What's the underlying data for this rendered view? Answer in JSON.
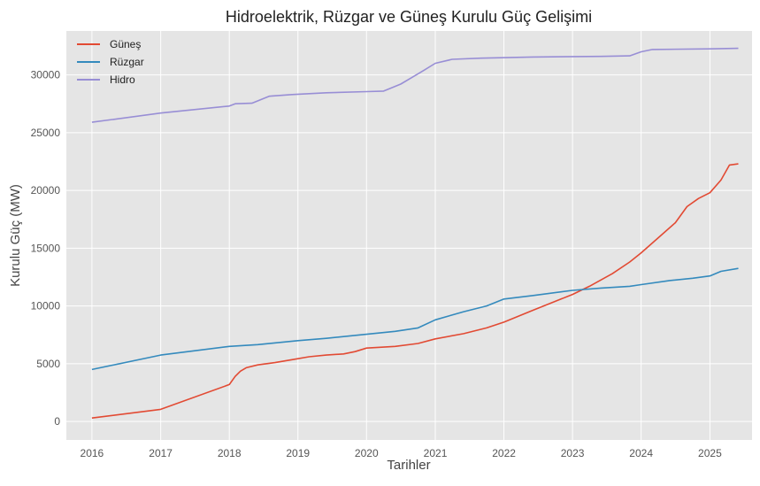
{
  "chart_data": {
    "type": "line",
    "title": "Hidroelektrik, Rüzgar ve Güneş Kurulu Güç Gelişimi",
    "xlabel": "Tarihler",
    "ylabel": "Kurulu Güç (MW)",
    "xlim": [
      "2015-08-18",
      "2025-08-13"
    ],
    "ylim": [
      -1600,
      33800
    ],
    "x_ticks": [
      "2016",
      "2017",
      "2018",
      "2019",
      "2020",
      "2021",
      "2022",
      "2023",
      "2024",
      "2025"
    ],
    "x_tick_dates": [
      "2016-01-01",
      "2017-01-01",
      "2018-01-01",
      "2019-01-01",
      "2020-01-01",
      "2021-01-01",
      "2022-01-01",
      "2023-01-01",
      "2024-01-01",
      "2025-01-01"
    ],
    "y_ticks": [
      0,
      5000,
      10000,
      15000,
      20000,
      25000,
      30000
    ],
    "grid": true,
    "legend_position": "top-left",
    "colors": {
      "background": "#e5e5e5",
      "grid": "#ffffff",
      "axis_text": "#555555",
      "label_text": "#333333"
    },
    "series": [
      {
        "name": "Güneş",
        "color": "#e24a33",
        "points": [
          [
            "2016-01-01",
            300
          ],
          [
            "2017-01-01",
            1050
          ],
          [
            "2018-01-01",
            3200
          ],
          [
            "2018-02-01",
            3900
          ],
          [
            "2018-03-01",
            4350
          ],
          [
            "2018-04-01",
            4650
          ],
          [
            "2018-06-01",
            4900
          ],
          [
            "2018-09-01",
            5100
          ],
          [
            "2018-12-01",
            5350
          ],
          [
            "2019-03-01",
            5600
          ],
          [
            "2019-06-01",
            5750
          ],
          [
            "2019-09-01",
            5850
          ],
          [
            "2019-11-01",
            6050
          ],
          [
            "2020-01-01",
            6350
          ],
          [
            "2020-06-01",
            6500
          ],
          [
            "2020-10-01",
            6750
          ],
          [
            "2021-01-01",
            7150
          ],
          [
            "2021-06-01",
            7600
          ],
          [
            "2021-10-01",
            8100
          ],
          [
            "2022-01-01",
            8600
          ],
          [
            "2022-06-01",
            9600
          ],
          [
            "2022-10-01",
            10400
          ],
          [
            "2023-01-01",
            11000
          ],
          [
            "2023-04-01",
            11700
          ],
          [
            "2023-08-01",
            12800
          ],
          [
            "2023-11-01",
            13800
          ],
          [
            "2024-01-01",
            14600
          ],
          [
            "2024-04-01",
            15900
          ],
          [
            "2024-07-01",
            17200
          ],
          [
            "2024-09-01",
            18600
          ],
          [
            "2024-11-01",
            19300
          ],
          [
            "2025-01-01",
            19800
          ],
          [
            "2025-03-01",
            20900
          ],
          [
            "2025-04-15",
            22200
          ],
          [
            "2025-06-01",
            22300
          ]
        ]
      },
      {
        "name": "Rüzgar",
        "color": "#348abd",
        "points": [
          [
            "2016-01-01",
            4500
          ],
          [
            "2017-01-01",
            5750
          ],
          [
            "2018-01-01",
            6500
          ],
          [
            "2018-06-01",
            6650
          ],
          [
            "2019-01-01",
            7000
          ],
          [
            "2019-06-01",
            7200
          ],
          [
            "2020-01-01",
            7550
          ],
          [
            "2020-06-01",
            7800
          ],
          [
            "2020-10-01",
            8100
          ],
          [
            "2021-01-01",
            8800
          ],
          [
            "2021-06-01",
            9500
          ],
          [
            "2021-10-01",
            10000
          ],
          [
            "2022-01-01",
            10600
          ],
          [
            "2022-06-01",
            10900
          ],
          [
            "2023-01-01",
            11350
          ],
          [
            "2023-06-01",
            11550
          ],
          [
            "2023-11-01",
            11700
          ],
          [
            "2024-01-01",
            11850
          ],
          [
            "2024-06-01",
            12200
          ],
          [
            "2024-10-01",
            12400
          ],
          [
            "2025-01-01",
            12600
          ],
          [
            "2025-03-01",
            13000
          ],
          [
            "2025-06-01",
            13250
          ]
        ]
      },
      {
        "name": "Hidro",
        "color": "#988ed5",
        "points": [
          [
            "2016-01-01",
            25900
          ],
          [
            "2017-01-01",
            26700
          ],
          [
            "2018-01-01",
            27300
          ],
          [
            "2018-02-01",
            27500
          ],
          [
            "2018-05-01",
            27550
          ],
          [
            "2018-08-01",
            28150
          ],
          [
            "2018-12-01",
            28300
          ],
          [
            "2019-06-01",
            28450
          ],
          [
            "2020-01-01",
            28550
          ],
          [
            "2020-04-01",
            28600
          ],
          [
            "2020-07-01",
            29200
          ],
          [
            "2020-09-01",
            29800
          ],
          [
            "2020-11-01",
            30400
          ],
          [
            "2021-01-01",
            31000
          ],
          [
            "2021-04-01",
            31350
          ],
          [
            "2021-09-01",
            31450
          ],
          [
            "2022-06-01",
            31550
          ],
          [
            "2023-06-01",
            31600
          ],
          [
            "2023-11-01",
            31650
          ],
          [
            "2024-01-01",
            32000
          ],
          [
            "2024-03-01",
            32200
          ],
          [
            "2025-01-01",
            32250
          ],
          [
            "2025-06-01",
            32300
          ]
        ]
      }
    ]
  }
}
